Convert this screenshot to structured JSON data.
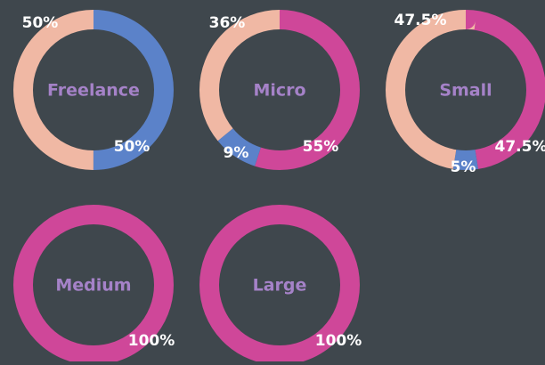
{
  "chart_data": [
    {
      "type": "pie",
      "title": "Freelance",
      "values": [
        50,
        50
      ],
      "value_labels": [
        "50%",
        "50%"
      ],
      "colors": [
        "#5b82c9",
        "#f0b8a4"
      ]
    },
    {
      "type": "pie",
      "title": "Micro",
      "values": [
        55,
        9,
        36
      ],
      "value_labels": [
        "55%",
        "9%",
        "36%"
      ],
      "colors": [
        "#cf4799",
        "#5b82c9",
        "#f0b8a4"
      ]
    },
    {
      "type": "pie",
      "title": "Small",
      "values": [
        47.5,
        5,
        47.5
      ],
      "value_labels": [
        "47.5%",
        "5%",
        "47.5%"
      ],
      "colors": [
        "#cf4799",
        "#5b82c9",
        "#f0b8a4"
      ]
    },
    {
      "type": "pie",
      "title": "Medium",
      "values": [
        100
      ],
      "value_labels": [
        "100%"
      ],
      "colors": [
        "#cf4799"
      ]
    },
    {
      "type": "pie",
      "title": "Large",
      "values": [
        100
      ],
      "value_labels": [
        "100%"
      ],
      "colors": [
        "#cf4799"
      ]
    }
  ]
}
